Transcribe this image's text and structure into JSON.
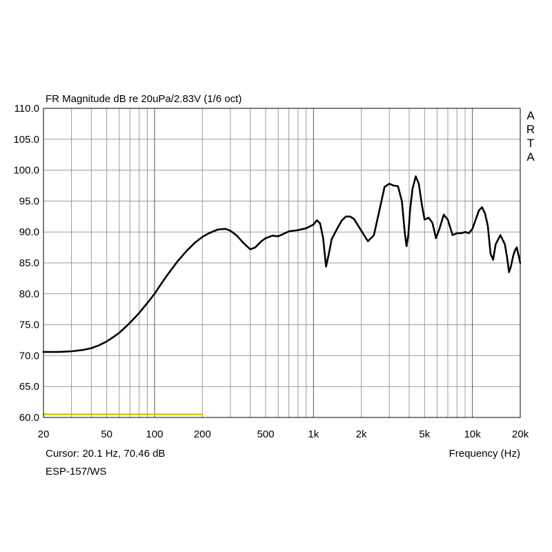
{
  "chart_data": {
    "type": "line",
    "title": "FR Magnitude dB re 20uPa/2.83V (1/6 oct)",
    "watermark": "ARTA",
    "xlabel": "Frequency (Hz)",
    "ylabel": "",
    "x_scale": "log",
    "xlim": [
      20,
      20000
    ],
    "ylim": [
      60,
      110
    ],
    "grid": true,
    "x_tick_values": [
      20,
      50,
      100,
      200,
      500,
      1000,
      2000,
      5000,
      10000,
      20000
    ],
    "x_tick_labels": [
      "20",
      "50",
      "100",
      "200",
      "500",
      "1k",
      "2k",
      "5k",
      "10k",
      "20k"
    ],
    "y_tick_values": [
      60,
      65,
      70,
      75,
      80,
      85,
      90,
      95,
      100,
      105,
      110
    ],
    "y_tick_labels": [
      "60.0",
      "65.0",
      "70.0",
      "75.0",
      "80.0",
      "85.0",
      "90.0",
      "95.0",
      "100.0",
      "105.0",
      "110.0"
    ],
    "cursor_text": "Cursor: 20.1 Hz, 70.46 dB",
    "device_label": "ESP-157/WS",
    "series": [
      {
        "color": "#000000",
        "x": [
          20,
          25,
          30,
          35,
          40,
          45,
          50,
          55,
          60,
          70,
          80,
          90,
          100,
          110,
          120,
          140,
          160,
          180,
          200,
          220,
          250,
          280,
          300,
          330,
          360,
          400,
          430,
          470,
          500,
          550,
          600,
          700,
          800,
          900,
          1000,
          1050,
          1100,
          1150,
          1200,
          1250,
          1300,
          1400,
          1500,
          1600,
          1700,
          1800,
          2000,
          2200,
          2400,
          2600,
          2800,
          3000,
          3200,
          3400,
          3600,
          3750,
          3850,
          3950,
          4050,
          4200,
          4400,
          4600,
          4800,
          5000,
          5300,
          5600,
          5900,
          6200,
          6600,
          7000,
          7500,
          8000,
          8500,
          9000,
          9500,
          10000,
          11000,
          11500,
          12000,
          12500,
          13000,
          13500,
          14000,
          15000,
          16000,
          16500,
          17000,
          17500,
          18000,
          18500,
          19000,
          20000
        ],
        "y": [
          70.6,
          70.6,
          70.7,
          70.9,
          71.2,
          71.7,
          72.3,
          73.0,
          73.7,
          75.3,
          76.9,
          78.5,
          80.0,
          81.6,
          83.0,
          85.3,
          87.0,
          88.3,
          89.2,
          89.8,
          90.4,
          90.5,
          90.2,
          89.4,
          88.3,
          87.2,
          87.5,
          88.5,
          89.0,
          89.4,
          89.3,
          90.1,
          90.3,
          90.6,
          91.2,
          91.9,
          91.4,
          89.0,
          84.4,
          86.5,
          88.8,
          90.4,
          91.8,
          92.5,
          92.5,
          92.1,
          90.2,
          88.5,
          89.5,
          93.5,
          97.3,
          97.8,
          97.5,
          97.4,
          95.0,
          90.0,
          87.7,
          89.5,
          93.5,
          97.0,
          99.0,
          97.8,
          94.5,
          92.0,
          92.3,
          91.5,
          89.0,
          90.5,
          92.8,
          92.0,
          89.5,
          89.8,
          89.8,
          90.0,
          89.8,
          90.5,
          93.5,
          94.0,
          93.0,
          91.0,
          86.5,
          85.5,
          88.0,
          89.5,
          88.0,
          86.0,
          83.5,
          84.5,
          86.0,
          87.0,
          87.5,
          85.0
        ]
      },
      {
        "color": "#c8c800",
        "x": [
          20,
          200
        ],
        "y": [
          60.5,
          60.5
        ]
      }
    ]
  }
}
